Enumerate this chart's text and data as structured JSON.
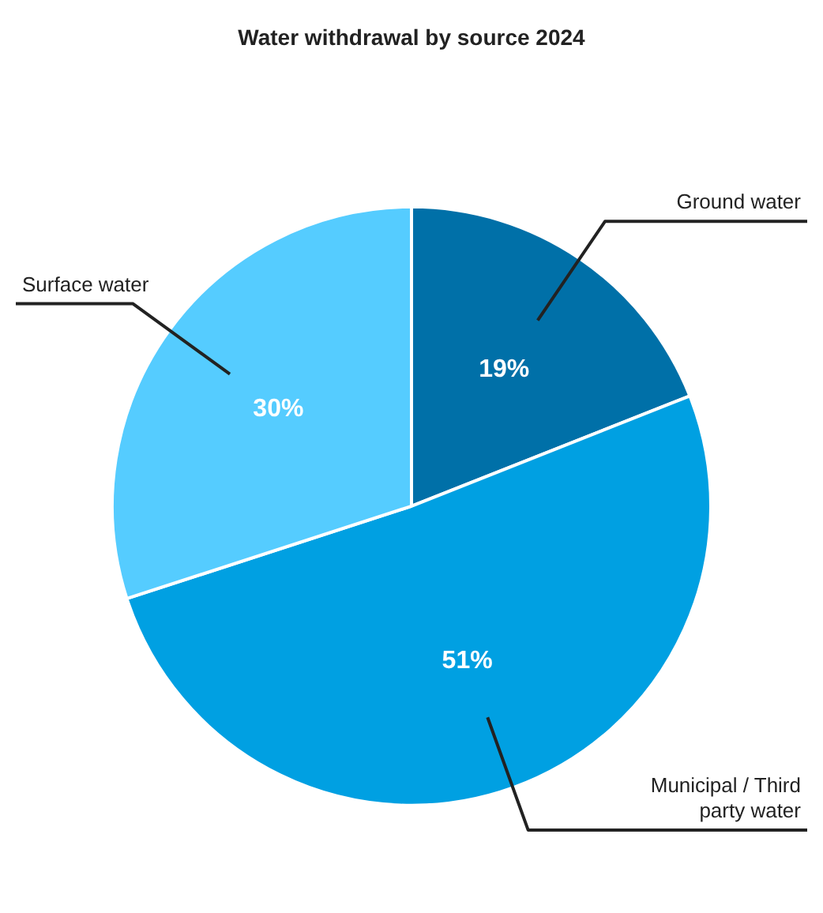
{
  "chart_data": {
    "type": "pie",
    "title": "Water withdrawal by source 2024",
    "categories": [
      "Ground water",
      "Municipal / Third party water",
      "Surface water"
    ],
    "values": [
      19,
      51,
      30
    ],
    "colors": [
      "#0070a8",
      "#00a0e2",
      "#55ccff"
    ],
    "value_labels": [
      "19%",
      "51%",
      "30%"
    ],
    "legend": false
  }
}
